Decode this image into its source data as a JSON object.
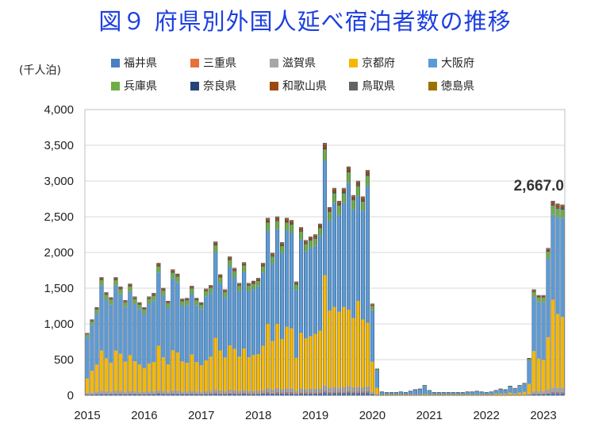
{
  "title": "図９  府県別外国人延べ宿泊者数の推移",
  "unit": "(千人泊)",
  "chart_data": {
    "type": "bar",
    "stacked": true,
    "ylim": [
      0,
      4000
    ],
    "yticks": [
      "0",
      "500",
      "1,000",
      "1,500",
      "2,000",
      "2,500",
      "3,000",
      "3,500",
      "4,000"
    ],
    "ytick_values": [
      0,
      500,
      1000,
      1500,
      2000,
      2500,
      3000,
      3500,
      4000
    ],
    "xtick_labels": [
      "2015",
      "2016",
      "2017",
      "2018",
      "2019",
      "2020",
      "2021",
      "2022",
      "2023"
    ],
    "xtick_month_index": [
      0,
      12,
      24,
      36,
      48,
      60,
      72,
      84,
      96
    ],
    "months": 101,
    "legend": [
      "福井県",
      "三重県",
      "滋賀県",
      "京都府",
      "大阪府",
      "兵庫県",
      "奈良県",
      "和歌山県",
      "鳥取県",
      "徳島県"
    ],
    "colors": [
      "#4a7fc1",
      "#e8703a",
      "#a6a6a6",
      "#f5b800",
      "#5b9bd5",
      "#70ad47",
      "#264478",
      "#9e480e",
      "#636363",
      "#997300"
    ],
    "totals": [
      870,
      1060,
      1230,
      1650,
      1440,
      1370,
      1650,
      1520,
      1330,
      1560,
      1380,
      1300,
      1230,
      1380,
      1430,
      1850,
      1500,
      1320,
      1760,
      1700,
      1350,
      1360,
      1530,
      1360,
      1300,
      1490,
      1540,
      2150,
      1690,
      1480,
      1940,
      1780,
      1570,
      1860,
      1570,
      1600,
      1640,
      1850,
      2480,
      1990,
      2500,
      2140,
      2480,
      2450,
      1590,
      2350,
      2170,
      2220,
      2250,
      2400,
      3530,
      2630,
      2900,
      2720,
      2900,
      3200,
      2800,
      3000,
      2780,
      3150,
      1280,
      370,
      50,
      40,
      40,
      40,
      50,
      40,
      60,
      80,
      90,
      140,
      70,
      40,
      40,
      40,
      40,
      40,
      40,
      40,
      50,
      50,
      60,
      50,
      40,
      50,
      70,
      90,
      80,
      130,
      100,
      140,
      170,
      520,
      1480,
      1400,
      1400,
      2060,
      2720,
      2680,
      2667
    ],
    "kyoto": [
      200,
      300,
      380,
      560,
      460,
      400,
      560,
      520,
      420,
      500,
      420,
      380,
      330,
      390,
      410,
      620,
      470,
      380,
      560,
      530,
      420,
      400,
      510,
      410,
      370,
      430,
      480,
      720,
      560,
      470,
      620,
      580,
      480,
      580,
      470,
      500,
      510,
      620,
      900,
      680,
      900,
      700,
      860,
      840,
      460,
      780,
      710,
      740,
      770,
      810,
      1540,
      1080,
      1120,
      1060,
      1120,
      1070,
      970,
      1200,
      950,
      890,
      420,
      90,
      10,
      10,
      10,
      10,
      10,
      10,
      10,
      10,
      10,
      10,
      10,
      10,
      10,
      10,
      10,
      10,
      10,
      10,
      10,
      10,
      10,
      10,
      10,
      10,
      20,
      20,
      20,
      30,
      20,
      30,
      40,
      140,
      560,
      460,
      440,
      730,
      1230,
      1030,
      990
    ],
    "end_label": "2,667.0"
  }
}
